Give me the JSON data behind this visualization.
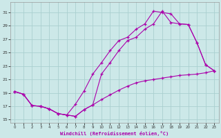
{
  "xlabel": "Windchill (Refroidissement éolien,°C)",
  "bg_color": "#cce8e8",
  "grid_color": "#aacfcf",
  "line_color": "#aa00aa",
  "xlim": [
    -0.5,
    23.5
  ],
  "ylim": [
    14.5,
    32.5
  ],
  "yticks": [
    15,
    17,
    19,
    21,
    23,
    25,
    27,
    29,
    31
  ],
  "xticks": [
    0,
    1,
    2,
    3,
    4,
    5,
    6,
    7,
    8,
    9,
    10,
    11,
    12,
    13,
    14,
    15,
    16,
    17,
    18,
    19,
    20,
    21,
    22,
    23
  ],
  "line1_x": [
    0,
    1,
    2,
    3,
    4,
    5,
    6,
    7,
    8,
    9,
    10,
    11,
    12,
    13,
    14,
    15,
    16,
    17,
    18,
    19,
    20,
    21,
    22,
    23
  ],
  "line1_y": [
    19.2,
    18.8,
    17.1,
    17.0,
    16.6,
    15.9,
    15.7,
    15.5,
    16.5,
    17.2,
    18.0,
    18.7,
    19.4,
    20.0,
    20.5,
    20.8,
    21.0,
    21.2,
    21.4,
    21.6,
    21.7,
    21.8,
    22.0,
    22.3
  ],
  "line2_x": [
    0,
    1,
    2,
    3,
    4,
    5,
    6,
    7,
    8,
    9,
    10,
    11,
    12,
    13,
    14,
    15,
    16,
    17,
    18,
    19,
    20,
    21,
    22,
    23
  ],
  "line2_y": [
    19.2,
    18.8,
    17.1,
    17.0,
    16.6,
    15.9,
    15.7,
    17.3,
    19.3,
    21.8,
    23.5,
    25.3,
    26.8,
    27.3,
    28.5,
    29.3,
    31.2,
    31.0,
    30.8,
    29.3,
    29.2,
    26.5,
    23.2,
    22.3
  ],
  "line3_x": [
    0,
    1,
    2,
    3,
    4,
    5,
    6,
    7,
    8,
    9,
    10,
    11,
    12,
    13,
    14,
    15,
    16,
    17,
    18,
    19,
    20,
    21,
    22,
    23
  ],
  "line3_y": [
    19.2,
    18.8,
    17.1,
    17.0,
    16.6,
    15.9,
    15.7,
    15.5,
    16.5,
    17.2,
    21.8,
    23.5,
    25.3,
    26.8,
    27.3,
    28.5,
    29.3,
    31.2,
    29.5,
    29.3,
    29.2,
    26.5,
    23.2,
    22.3
  ]
}
